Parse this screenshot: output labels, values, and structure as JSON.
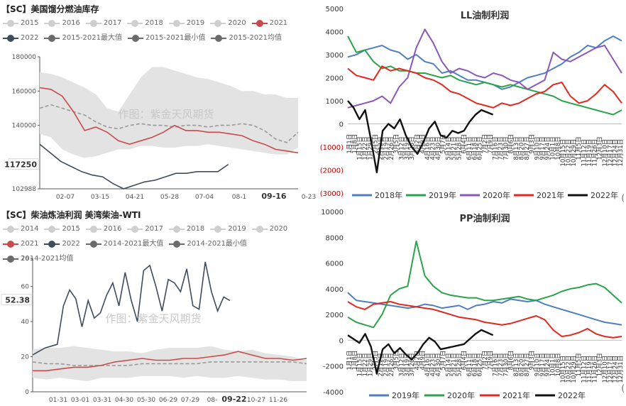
{
  "top_left": {
    "title": "【SC】美国馏分燃油库存",
    "legend": [
      {
        "label": "2015",
        "color": "#cfcfcf"
      },
      {
        "label": "2016",
        "color": "#cfcfcf"
      },
      {
        "label": "2017",
        "color": "#cfcfcf"
      },
      {
        "label": "2018",
        "color": "#cfcfcf"
      },
      {
        "label": "2019",
        "color": "#cfcfcf"
      },
      {
        "label": "2020",
        "color": "#cfcfcf"
      },
      {
        "label": "2021",
        "color": "#c94a4a"
      },
      {
        "label": "2022",
        "color": "#3e4c5b"
      },
      {
        "label": "2015-2021最大值",
        "color": "#6b6b6b"
      },
      {
        "label": "2015-2021最小值",
        "color": "#6b6b6b"
      },
      {
        "label": "2015-2021均值",
        "color": "#6b6b6b"
      }
    ],
    "watermark": "作图：紫金天风期货"
  },
  "bottom_left": {
    "title": "【SC】柴油炼油利润 美湾柴油-WTI",
    "legend": [
      {
        "label": "2014",
        "color": "#cfcfcf"
      },
      {
        "label": "2015",
        "color": "#cfcfcf"
      },
      {
        "label": "2016",
        "color": "#cfcfcf"
      },
      {
        "label": "2017",
        "color": "#cfcfcf"
      },
      {
        "label": "2018",
        "color": "#cfcfcf"
      },
      {
        "label": "2019",
        "color": "#cfcfcf"
      },
      {
        "label": "2020",
        "color": "#cfcfcf"
      },
      {
        "label": "2021",
        "color": "#c94a4a"
      },
      {
        "label": "2022",
        "color": "#3e4c5b"
      },
      {
        "label": "2014-2021最大值",
        "color": "#6b6b6b"
      },
      {
        "label": "2014-2021最小值",
        "color": "#6b6b6b"
      },
      {
        "label": "2014-2021均值",
        "color": "#6b6b6b"
      }
    ],
    "watermark": "作图：紫金天风期货"
  },
  "chart_data": [
    {
      "id": "us-distillate-stocks",
      "type": "line",
      "title": "【SC】美国馏分燃油库存",
      "ylim": [
        102988,
        180000
      ],
      "yticks": [
        102988,
        140000,
        160000,
        180000
      ],
      "highlight_value": "117250",
      "xticks": [
        "02-07",
        "03-15",
        "04-21",
        "05-28",
        "07-04",
        "08-1",
        "09-16",
        "0-23"
      ],
      "x_highlight": "09-16",
      "band_max": [
        171000,
        170000,
        168000,
        165000,
        162000,
        158000,
        150000,
        148000,
        158000,
        168000,
        174000,
        174000,
        172000,
        170000,
        168000,
        167000,
        165000,
        163000,
        160000,
        160000,
        158000,
        158000,
        156000,
        156000
      ],
      "band_min": [
        135000,
        133000,
        126000,
        123000,
        121000,
        122000,
        124000,
        126000,
        126000,
        128000,
        128000,
        127000,
        127000,
        128000,
        128000,
        129000,
        128000,
        127000,
        126000,
        125000,
        124000,
        123000,
        123000,
        127000
      ],
      "series": [
        {
          "name": "2015-2021均值",
          "color": "#999999",
          "dashed": true,
          "values": [
            150000,
            152000,
            150000,
            148000,
            146000,
            142000,
            139000,
            138000,
            140000,
            141000,
            140000,
            140000,
            139000,
            140000,
            140000,
            139000,
            140000,
            140000,
            141000,
            140000,
            137000,
            132000,
            130000,
            136000
          ]
        },
        {
          "name": "2021",
          "color": "#c94a4a",
          "values": [
            162000,
            161000,
            157000,
            148000,
            137000,
            139000,
            136000,
            131000,
            129000,
            131000,
            133000,
            136000,
            140000,
            137000,
            137000,
            136000,
            136000,
            135000,
            134000,
            131000,
            129000,
            126000,
            125000,
            124000
          ]
        },
        {
          "name": "2022",
          "color": "#3e4c5b",
          "values": [
            129000,
            124000,
            119000,
            116000,
            113000,
            111000,
            110000,
            106000,
            103000,
            105000,
            107000,
            108000,
            110000,
            112000,
            112000,
            113000,
            113000,
            113000,
            117250
          ]
        }
      ]
    },
    {
      "id": "ll-margin",
      "type": "line",
      "title": "LL油制利润",
      "ylim": [
        -3000,
        5000
      ],
      "yticks": [
        5000,
        4000,
        3000,
        2000,
        1000,
        0,
        -1000,
        -2000,
        -3000
      ],
      "ytick_labels": [
        "5000",
        "4000",
        "3000",
        "2000",
        "1000",
        "0",
        "(1000)",
        "(2000)",
        "(3000)"
      ],
      "xticks": [
        "1月1日",
        "1月8日",
        "1月15日",
        "1月22日",
        "1月29日",
        "2月5日",
        "2月12日",
        "2月19日",
        "2月26日",
        "3月5日",
        "3月12日",
        "3月19日",
        "3月26日",
        "4月2日",
        "4月9日",
        "4月16日",
        "4月23日",
        "4月30日",
        "5月7日",
        "5月14日",
        "5月21日",
        "5月28日",
        "6月4日",
        "6月11日",
        "6月18日",
        "6月25日",
        "7月2日",
        "7月9日",
        "7月16日",
        "7月23日",
        "7月30日",
        "8月6日",
        "8月13日",
        "8月20日",
        "8月27日",
        "9月3日",
        "9月10日",
        "9月17日",
        "9月24日",
        "10月1日",
        "10月8日",
        "10月15日",
        "10月22日",
        "10月29日",
        "11月5日",
        "11月12日",
        "11月19日",
        "11月26日",
        "12月3日",
        "12月10日",
        "12月17日",
        "12月24日",
        "12月31日"
      ],
      "legend": [
        "2018年",
        "2019年",
        "2020年",
        "2021年",
        "2022年"
      ],
      "series": [
        {
          "name": "2018年",
          "color": "#4f7fc1",
          "values": [
            2900,
            3000,
            3200,
            3300,
            3400,
            3200,
            3100,
            2800,
            3000,
            2700,
            2600,
            2200,
            2300,
            2100,
            1900,
            1900,
            1800,
            1700,
            1500,
            1600,
            1800,
            2000,
            2100,
            2200,
            2400,
            2600,
            2900,
            3100,
            3400,
            3300,
            3600,
            3800,
            3600
          ]
        },
        {
          "name": "2019年",
          "color": "#2aa34a",
          "values": [
            3800,
            3100,
            3200,
            2700,
            2400,
            2500,
            2300,
            2300,
            2200,
            2200,
            2100,
            2000,
            2100,
            1900,
            1800,
            1700,
            1800,
            1700,
            1600,
            1700,
            1600,
            1500,
            1400,
            1300,
            1200,
            1000,
            900,
            800,
            700,
            600,
            500,
            400,
            600
          ]
        },
        {
          "name": "2020年",
          "color": "#8c57b8",
          "values": [
            700,
            800,
            900,
            1000,
            1200,
            900,
            1600,
            2000,
            3300,
            4100,
            3500,
            2700,
            2200,
            2400,
            2300,
            2100,
            2000,
            2200,
            2100,
            1900,
            1800,
            1500,
            1700,
            1900,
            3100,
            2800,
            2700,
            2900,
            3100,
            3300,
            3400,
            2800,
            2200
          ]
        },
        {
          "name": "2021年",
          "color": "#e0291f",
          "values": [
            2400,
            2100,
            2000,
            1900,
            2500,
            2300,
            2400,
            2300,
            2200,
            2000,
            1900,
            1700,
            1400,
            1300,
            1100,
            900,
            800,
            700,
            900,
            800,
            900,
            1100,
            1300,
            1400,
            1700,
            1800,
            1200,
            900,
            1000,
            1300,
            1700,
            1400,
            900
          ]
        },
        {
          "name": "2022年",
          "color": "#111111",
          "values": [
            1000,
            700,
            200,
            600,
            -700,
            -2100,
            -300,
            0,
            -200,
            200,
            -500,
            -1000,
            -1300,
            -800,
            -200,
            100,
            -500,
            -600,
            -300,
            -400,
            -300,
            100,
            400,
            600,
            500,
            400
          ]
        }
      ]
    },
    {
      "id": "diesel-crack-wti",
      "type": "line",
      "title": "【SC】柴油炼油利润 美湾柴油-WTI",
      "ylim": [
        0,
        76
      ],
      "yticks": [
        0,
        20,
        40,
        60,
        76
      ],
      "highlight_value": "52.38",
      "xticks": [
        "01-31",
        "03-01",
        "03-31",
        "04-30",
        "05-30",
        "06-29",
        "07-29",
        "08-",
        "09-22",
        "10-27",
        "11-26"
      ],
      "x_highlight": "09-22",
      "band_max": [
        24,
        25,
        25,
        26,
        25,
        24,
        23,
        23,
        22,
        24,
        25,
        25,
        25,
        26,
        24,
        23,
        24,
        22,
        21,
        20,
        18
      ],
      "band_min": [
        8,
        7,
        8,
        7,
        6,
        8,
        8,
        8,
        9,
        9,
        9,
        8,
        9,
        8,
        8,
        9,
        8,
        7,
        7,
        6,
        6
      ],
      "series": [
        {
          "name": "2014-2021均值",
          "color": "#999999",
          "dashed": true,
          "values": [
            17,
            16,
            16,
            15,
            15,
            15,
            15,
            15,
            16,
            16,
            16,
            16,
            16,
            17,
            17,
            17,
            17,
            17,
            17,
            17,
            16
          ]
        },
        {
          "name": "2021",
          "color": "#c94a4a",
          "values": [
            12,
            12,
            13,
            14,
            14,
            15,
            17,
            18,
            19,
            18,
            18,
            19,
            19,
            20,
            21,
            23,
            21,
            19,
            19,
            18,
            19
          ]
        },
        {
          "name": "2022",
          "color": "#3e4c5b",
          "values": [
            21,
            23,
            25,
            26,
            27,
            49,
            58,
            53,
            37,
            52,
            42,
            45,
            55,
            62,
            49,
            68,
            52,
            40,
            69,
            72,
            60,
            46,
            64,
            62,
            57,
            70,
            49,
            47,
            74,
            57,
            46,
            54,
            52
          ]
        }
      ]
    },
    {
      "id": "pp-margin",
      "type": "line",
      "title": "PP油制利润",
      "ylim": [
        -4000,
        10000
      ],
      "yticks": [
        10000,
        8000,
        6000,
        4000,
        2000,
        0,
        -2000,
        -4000
      ],
      "xticks": [
        "1月1日",
        "1月8日",
        "1月15日",
        "1月22日",
        "1月29日",
        "2月5日",
        "2月12日",
        "2月19日",
        "2月26日",
        "3月5日",
        "3月12日",
        "3月19日",
        "3月26日",
        "4月2日",
        "4月9日",
        "4月16日",
        "4月23日",
        "4月30日",
        "5月7日",
        "5月14日",
        "5月21日",
        "5月28日",
        "6月4日",
        "6月11日",
        "6月18日",
        "6月25日",
        "7月2日",
        "7月9日",
        "7月16日",
        "7月23日",
        "7月30日",
        "8月6日",
        "8月13日",
        "8月20日",
        "8月27日",
        "9月3日",
        "9月10日",
        "9月17日",
        "9月24日",
        "10月1日",
        "10月8日",
        "10月15日",
        "10月22日",
        "10月29日",
        "11月5日",
        "11月12日",
        "11月19日",
        "11月26日",
        "12月3日",
        "12月10日",
        "12月17日",
        "12月24日",
        "12月31日"
      ],
      "legend": [
        "2019年",
        "2020年",
        "2021年",
        "2022年"
      ],
      "series": [
        {
          "name": "2019年",
          "color": "#4f7fc1",
          "values": [
            3700,
            3100,
            3000,
            2900,
            2800,
            2700,
            2600,
            2500,
            2600,
            2800,
            2700,
            2500,
            2600,
            2700,
            2400,
            2700,
            2800,
            3000,
            2900,
            3200,
            3100,
            3000,
            3100,
            2800,
            2600,
            2400,
            2200,
            2000,
            1800,
            1600,
            1400,
            1300,
            1200
          ]
        },
        {
          "name": "2020年",
          "color": "#2aa34a",
          "values": [
            1800,
            1400,
            1200,
            1000,
            2000,
            3500,
            4000,
            4200,
            7700,
            5000,
            4200,
            3700,
            3500,
            3400,
            3300,
            3300,
            3100,
            3100,
            3200,
            3300,
            3400,
            3200,
            3100,
            3300,
            3500,
            3800,
            4000,
            4100,
            4300,
            4400,
            4100,
            3500,
            2900
          ]
        },
        {
          "name": "2021年",
          "color": "#e0291f",
          "values": [
            3000,
            2600,
            2400,
            2800,
            2900,
            3000,
            2800,
            2700,
            2600,
            2500,
            2400,
            2200,
            2000,
            1800,
            1700,
            1600,
            1400,
            1300,
            1200,
            1300,
            1500,
            1700,
            1900,
            1600,
            800,
            300,
            400,
            600,
            900,
            500,
            300,
            200,
            300
          ]
        },
        {
          "name": "2022年",
          "color": "#111111",
          "values": [
            400,
            100,
            -200,
            500,
            -500,
            -2600,
            -700,
            -300,
            -1000,
            -600,
            -1100,
            -1500,
            -1000,
            -300,
            200,
            -100,
            -700,
            -600,
            -500,
            -400,
            -300,
            100,
            500,
            800,
            600,
            400
          ]
        }
      ]
    }
  ]
}
